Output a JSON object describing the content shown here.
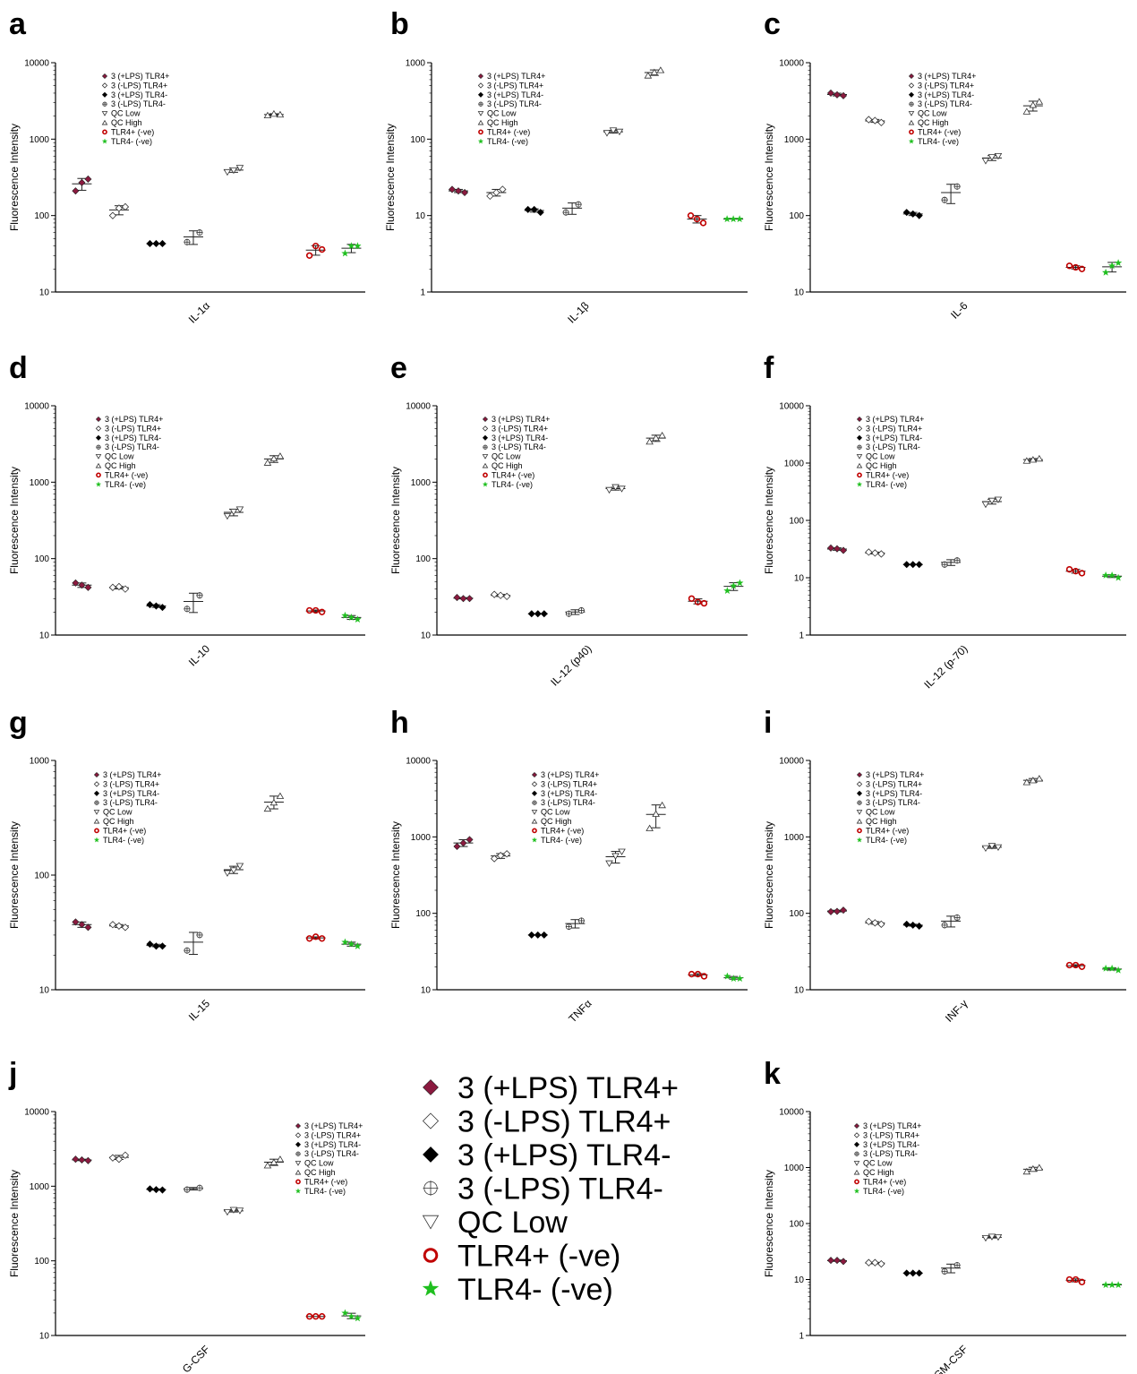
{
  "legend": {
    "entries": [
      "3 (+LPS) TLR4+",
      "3 (-LPS) TLR4+",
      "3 (+LPS) TLR4-",
      "3 (-LPS) TLR4-",
      "QC Low",
      "QC High",
      "TLR4+ (-ve)",
      "TLR4- (-ve)"
    ],
    "markers": [
      "diamond-filled-maroon",
      "diamond-open",
      "diamond-filled-black",
      "circle-cross",
      "triangle-down-open",
      "triangle-up-open",
      "circle-open-red",
      "star-green"
    ],
    "colors": {
      "maroon": "#8b1a3f",
      "red": "#c00000",
      "green": "#1fbf1f",
      "black": "#000000"
    }
  },
  "big_legend": {
    "entries": [
      "3 (+LPS) TLR4+",
      "3 (-LPS) TLR4+",
      "3 (+LPS) TLR4-",
      "3 (-LPS) TLR4-",
      "QC Low",
      "TLR4+ (-ve)",
      "TLR4- (-ve)"
    ],
    "markers": [
      "diamond-filled-maroon",
      "diamond-open",
      "diamond-filled-black",
      "circle-cross",
      "triangle-down-open",
      "circle-open-red",
      "star-green"
    ]
  },
  "chart_data": [
    {
      "type": "scatter",
      "panel": "a",
      "xlabel": "IL-1α",
      "ylabel": "Fluorescence Intensity",
      "yscale": "log",
      "ylim": [
        10,
        10000
      ],
      "yticks": [
        "10",
        "100",
        "1000",
        "10000"
      ],
      "series": [
        [
          210,
          300,
          270
        ],
        [
          100,
          130,
          125
        ],
        [
          43,
          43,
          43
        ],
        [
          45,
          60,
          null
        ],
        [
          370,
          420,
          390
        ],
        [
          2050,
          2100,
          2150
        ],
        [
          30,
          36,
          40
        ],
        [
          32,
          40,
          40
        ]
      ]
    },
    {
      "type": "scatter",
      "panel": "b",
      "xlabel": "IL-1β",
      "ylabel": "Fluorescence Intensity",
      "yscale": "log",
      "ylim": [
        1,
        1000
      ],
      "yticks": [
        "1",
        "10",
        "100",
        "1000"
      ],
      "series": [
        [
          22,
          20,
          21
        ],
        [
          18,
          22,
          20
        ],
        [
          12,
          11,
          12
        ],
        [
          11,
          14,
          null
        ],
        [
          120,
          125,
          130
        ],
        [
          680,
          800,
          750
        ],
        [
          10,
          8,
          9
        ],
        [
          9,
          9,
          9
        ]
      ]
    },
    {
      "type": "scatter",
      "panel": "c",
      "xlabel": "IL-6",
      "ylabel": "Fluorescence Intensity",
      "yscale": "log",
      "ylim": [
        10,
        10000
      ],
      "yticks": [
        "10",
        "100",
        "1000",
        "10000"
      ],
      "series": [
        [
          4000,
          3700,
          3800
        ],
        [
          1800,
          1650,
          1750
        ],
        [
          110,
          100,
          105
        ],
        [
          160,
          240,
          null
        ],
        [
          520,
          600,
          580
        ],
        [
          2300,
          3100,
          2800
        ],
        [
          22,
          20,
          21
        ],
        [
          18,
          24,
          22
        ]
      ]
    },
    {
      "type": "scatter",
      "panel": "d",
      "xlabel": "IL-10",
      "ylabel": "Fluorescence Intensity",
      "yscale": "log",
      "ylim": [
        10,
        10000
      ],
      "yticks": [
        "10",
        "100",
        "1000",
        "10000"
      ],
      "series": [
        [
          48,
          42,
          45
        ],
        [
          42,
          40,
          43
        ],
        [
          25,
          23,
          24
        ],
        [
          22,
          33,
          null
        ],
        [
          360,
          440,
          410
        ],
        [
          1800,
          2200,
          2050
        ],
        [
          21,
          20,
          21
        ],
        [
          18,
          16,
          17
        ]
      ]
    },
    {
      "type": "scatter",
      "panel": "e",
      "xlabel": "IL-12 (p40)",
      "ylabel": "Fluorescence Intensity",
      "yscale": "log",
      "ylim": [
        10,
        10000
      ],
      "yticks": [
        "10",
        "100",
        "1000",
        "10000"
      ],
      "series": [
        [
          31,
          30,
          30
        ],
        [
          34,
          32,
          33
        ],
        [
          19,
          19,
          19
        ],
        [
          19,
          21,
          null
        ],
        [
          790,
          820,
          860
        ],
        [
          3400,
          4100,
          3800
        ],
        [
          30,
          26,
          27
        ],
        [
          38,
          48,
          44
        ]
      ]
    },
    {
      "type": "scatter",
      "panel": "f",
      "xlabel": "IL-12 (p-70)",
      "ylabel": "Fluorescence Intensity",
      "yscale": "log",
      "ylim": [
        1,
        10000
      ],
      "yticks": [
        "1",
        "10",
        "100",
        "1000",
        "10000"
      ],
      "series": [
        [
          33,
          30,
          32
        ],
        [
          28,
          26,
          27
        ],
        [
          17,
          17,
          17
        ],
        [
          17,
          20,
          null
        ],
        [
          190,
          230,
          220
        ],
        [
          1100,
          1200,
          1150
        ],
        [
          14,
          12,
          13
        ],
        [
          11,
          10,
          11
        ]
      ]
    },
    {
      "type": "scatter",
      "panel": "g",
      "xlabel": "IL-15",
      "ylabel": "Fluorescence Intensity",
      "yscale": "log",
      "ylim": [
        10,
        1000
      ],
      "yticks": [
        "10",
        "100",
        "1000"
      ],
      "series": [
        [
          39,
          35,
          37
        ],
        [
          37,
          35,
          36
        ],
        [
          25,
          24,
          24
        ],
        [
          22,
          30,
          null
        ],
        [
          104,
          120,
          110
        ],
        [
          380,
          490,
          430
        ],
        [
          28,
          28,
          29
        ],
        [
          26,
          24,
          25
        ]
      ]
    },
    {
      "type": "scatter",
      "panel": "h",
      "xlabel": "TNFα",
      "ylabel": "Fluorescence Intensity",
      "yscale": "log",
      "ylim": [
        10,
        10000
      ],
      "yticks": [
        "10",
        "100",
        "1000",
        "10000"
      ],
      "series": [
        [
          750,
          920,
          830
        ],
        [
          520,
          600,
          570
        ],
        [
          52,
          52,
          52
        ],
        [
          67,
          80,
          null
        ],
        [
          450,
          640,
          560
        ],
        [
          1300,
          2600,
          2000
        ],
        [
          16,
          15,
          16
        ],
        [
          15,
          14,
          14
        ]
      ]
    },
    {
      "type": "scatter",
      "panel": "i",
      "xlabel": "INF-γ",
      "ylabel": "Fluorescence Intensity",
      "yscale": "log",
      "ylim": [
        10,
        10000
      ],
      "yticks": [
        "10",
        "100",
        "1000",
        "10000"
      ],
      "series": [
        [
          105,
          110,
          106
        ],
        [
          78,
          72,
          75
        ],
        [
          72,
          68,
          70
        ],
        [
          70,
          88,
          null
        ],
        [
          710,
          730,
          760
        ],
        [
          5200,
          5800,
          5500
        ],
        [
          21,
          20,
          21
        ],
        [
          19,
          18,
          19
        ]
      ]
    },
    {
      "type": "scatter",
      "panel": "j",
      "xlabel": "G-CSF",
      "ylabel": "Fluorescence Intensity",
      "yscale": "log",
      "ylim": [
        10,
        10000
      ],
      "yticks": [
        "10",
        "100",
        "1000",
        "10000"
      ],
      "series": [
        [
          2300,
          2200,
          2250
        ],
        [
          2400,
          2600,
          2300
        ],
        [
          920,
          890,
          900
        ],
        [
          900,
          950,
          null
        ],
        [
          450,
          470,
          480
        ],
        [
          1900,
          2300,
          2100
        ],
        [
          18,
          18,
          18
        ],
        [
          20,
          17,
          18
        ]
      ]
    },
    {
      "type": "scatter",
      "panel": "k",
      "xlabel": "GM-CSF",
      "ylabel": "Fluorescence Intensity",
      "yscale": "log",
      "ylim": [
        1,
        10000
      ],
      "yticks": [
        "1",
        "10",
        "100",
        "1000",
        "10000"
      ],
      "series": [
        [
          22,
          21,
          22
        ],
        [
          20,
          19,
          20
        ],
        [
          13,
          13,
          13
        ],
        [
          14,
          18,
          null
        ],
        [
          55,
          57,
          58
        ],
        [
          850,
          1000,
          950
        ],
        [
          10,
          9,
          10
        ],
        [
          8,
          8,
          8
        ]
      ]
    }
  ]
}
